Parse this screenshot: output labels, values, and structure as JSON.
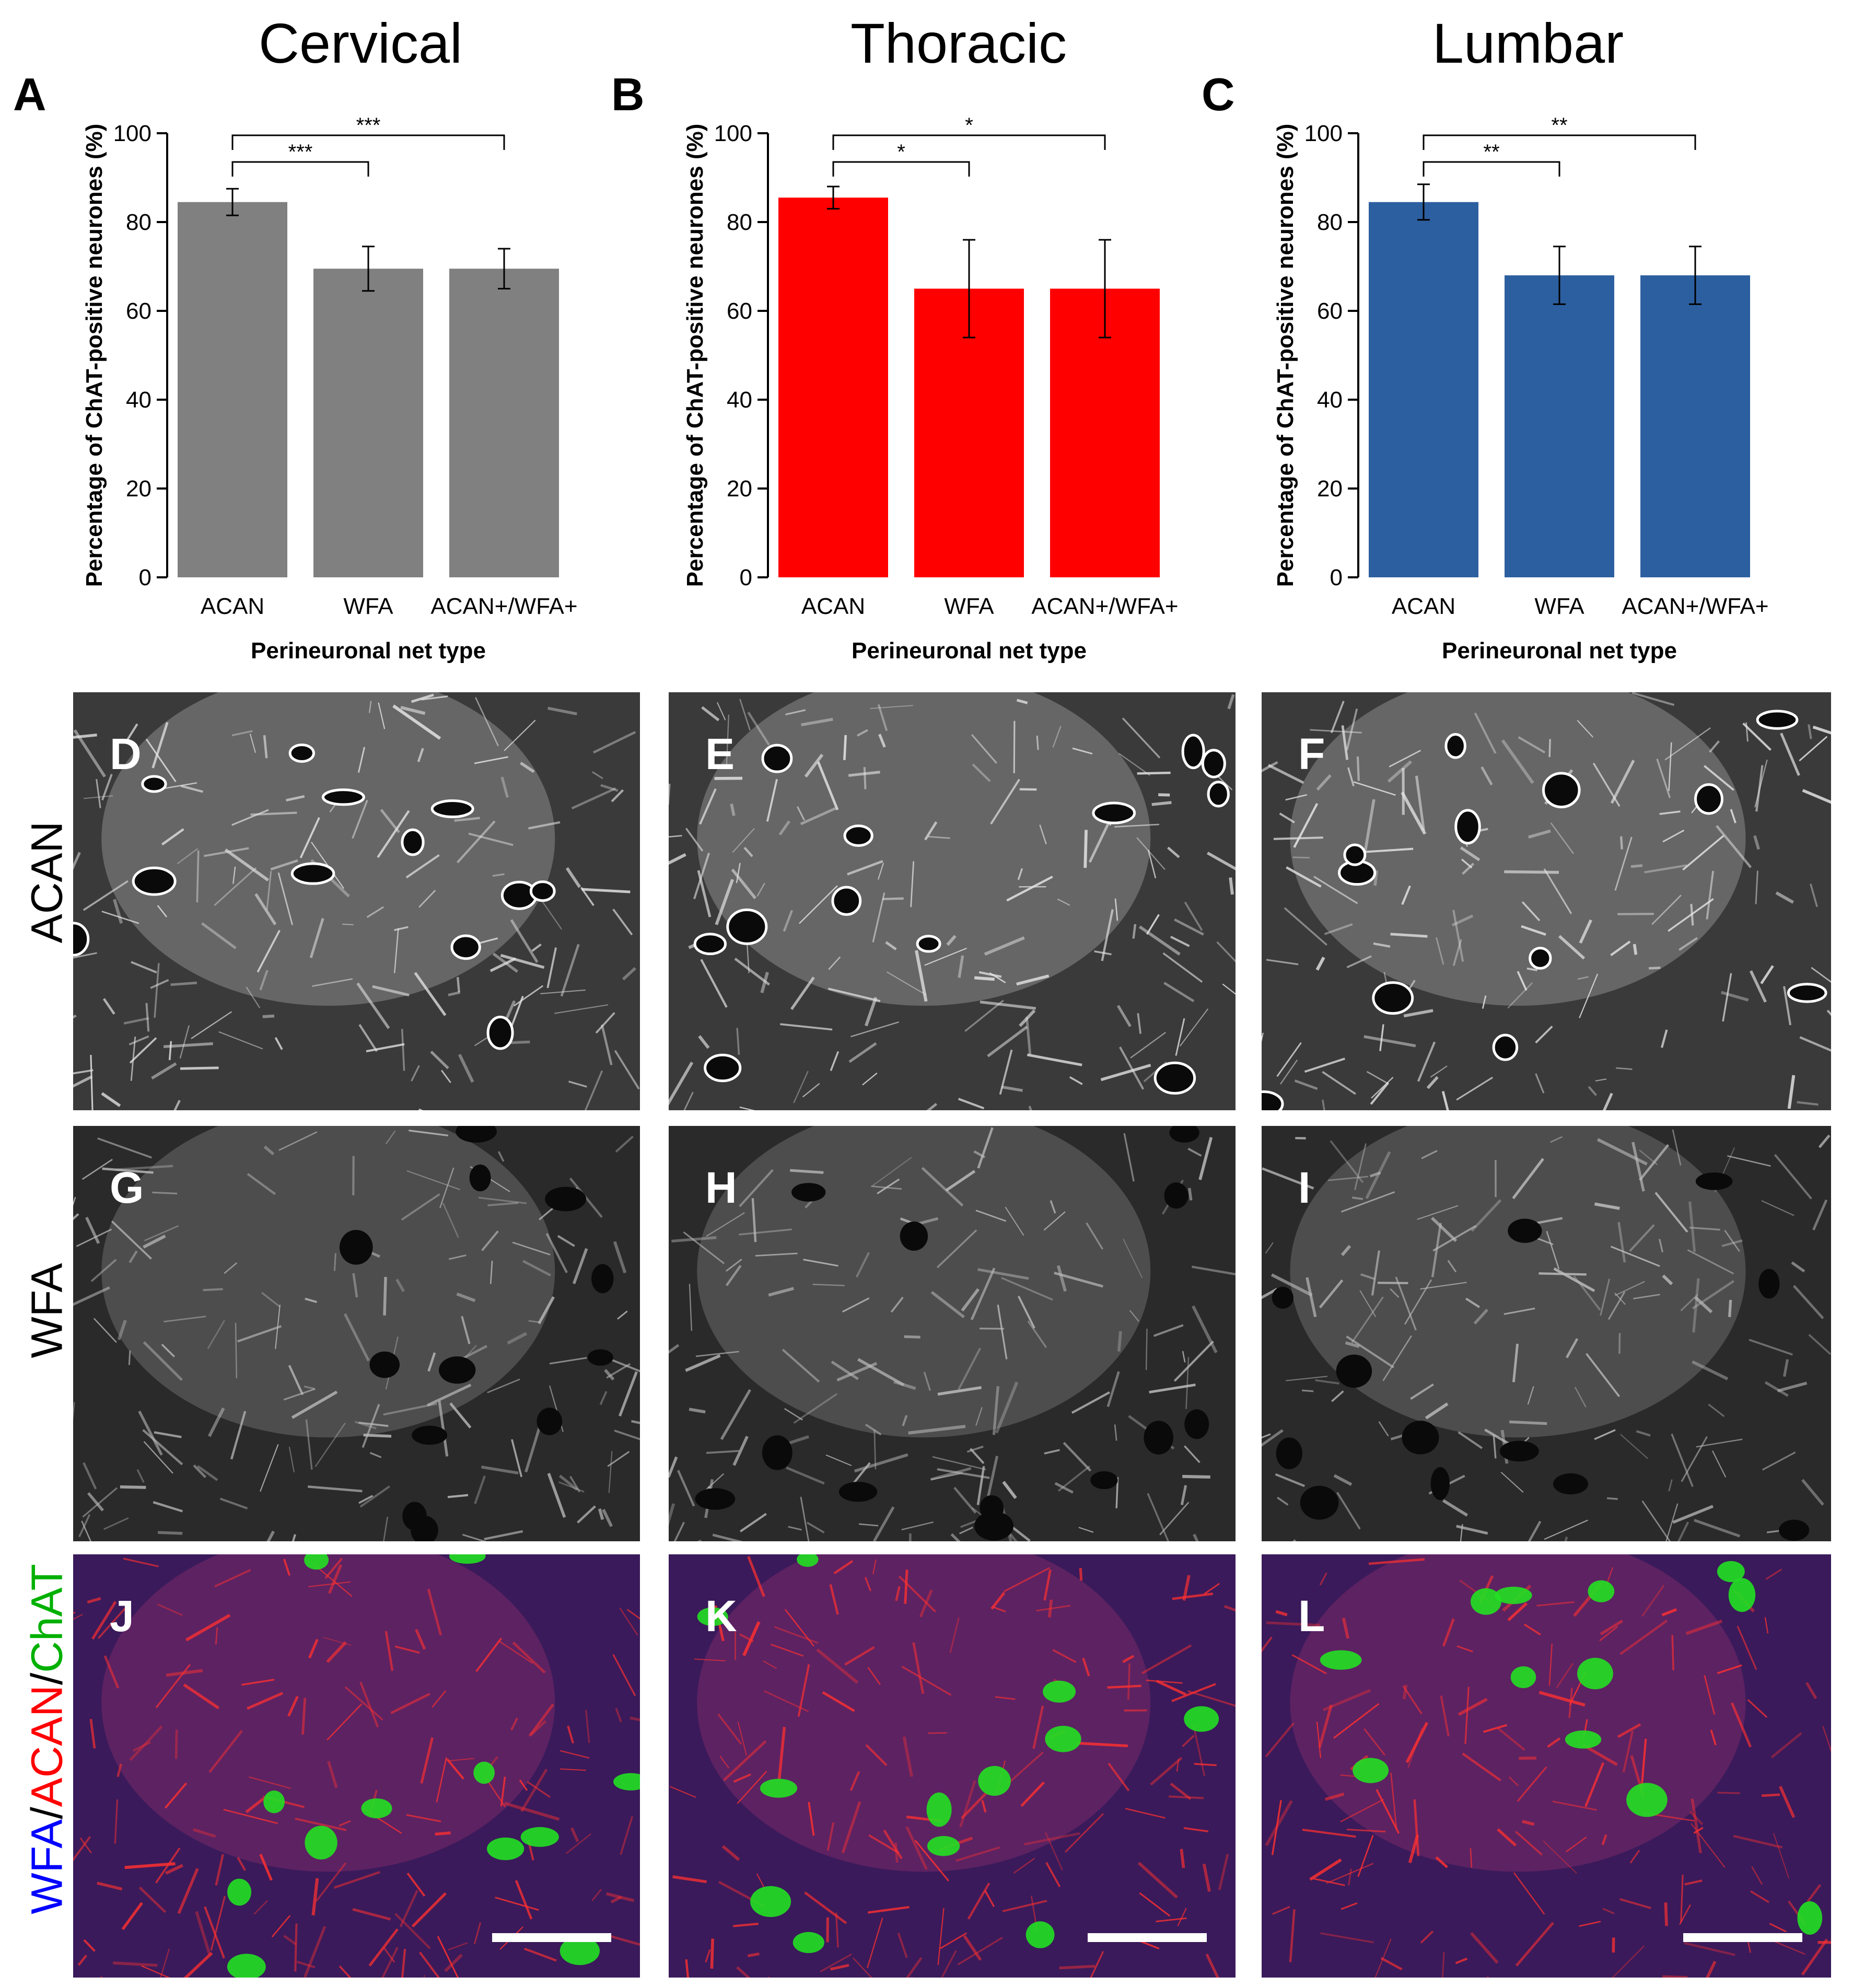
{
  "columns": [
    {
      "title": "Cervical",
      "letter": "A",
      "color": "#808080"
    },
    {
      "title": "Thoracic",
      "letter": "B",
      "color": "#ff0000"
    },
    {
      "title": "Lumbar",
      "letter": "C",
      "color": "#2c5fa0"
    }
  ],
  "chart_data": [
    {
      "type": "bar",
      "panel": "A",
      "categories": [
        "ACAN",
        "WFA",
        "ACAN+/WFA+"
      ],
      "values": [
        84.5,
        69.5,
        69.5
      ],
      "errors": [
        3,
        5,
        4.5
      ],
      "ylabel": "Percentage of ChAT-positive neurones (%)",
      "xlabel": "Perineuronal net type",
      "ylim": [
        0,
        100
      ],
      "yticks": [
        "0",
        "20",
        "40",
        "60",
        "80",
        "100"
      ],
      "significance": [
        {
          "from": "ACAN",
          "to": "WFA",
          "label": "***"
        },
        {
          "from": "ACAN",
          "to": "ACAN+/WFA+",
          "label": "***"
        }
      ],
      "bar_color": "#808080"
    },
    {
      "type": "bar",
      "panel": "B",
      "categories": [
        "ACAN",
        "WFA",
        "ACAN+/WFA+"
      ],
      "values": [
        85.5,
        65,
        65
      ],
      "errors": [
        2.5,
        11,
        11
      ],
      "ylabel": "Percentage of ChAT-positive neurones (%)",
      "xlabel": "Perineuronal net type",
      "ylim": [
        0,
        100
      ],
      "yticks": [
        "0",
        "20",
        "40",
        "60",
        "80",
        "100"
      ],
      "significance": [
        {
          "from": "ACAN",
          "to": "WFA",
          "label": "*"
        },
        {
          "from": "ACAN",
          "to": "ACAN+/WFA+",
          "label": "*"
        }
      ],
      "bar_color": "#ff0000"
    },
    {
      "type": "bar",
      "panel": "C",
      "categories": [
        "ACAN",
        "WFA",
        "ACAN+/WFA+"
      ],
      "values": [
        84.5,
        68,
        68
      ],
      "errors": [
        4,
        6.5,
        6.5
      ],
      "ylabel": "Percentage of ChAT-positive neurones (%)",
      "xlabel": "Perineuronal net type",
      "ylim": [
        0,
        100
      ],
      "yticks": [
        "0",
        "20",
        "40",
        "60",
        "80",
        "100"
      ],
      "significance": [
        {
          "from": "ACAN",
          "to": "WFA",
          "label": "**"
        },
        {
          "from": "ACAN",
          "to": "ACAN+/WFA+",
          "label": "**"
        }
      ],
      "bar_color": "#2c5fa0"
    }
  ],
  "rows": [
    {
      "label": "ACAN",
      "letters": [
        "D",
        "E",
        "F"
      ],
      "style": "acan"
    },
    {
      "label": "WFA",
      "letters": [
        "G",
        "H",
        "I"
      ],
      "style": "wfa"
    },
    {
      "label_parts": [
        {
          "text": "WFA",
          "color": "#0000ff"
        },
        {
          "text": "/",
          "color": "#000000"
        },
        {
          "text": "ACAN",
          "color": "#ff0000"
        },
        {
          "text": "/",
          "color": "#000000"
        },
        {
          "text": "ChAT",
          "color": "#00b000"
        }
      ],
      "letters": [
        "J",
        "K",
        "L"
      ],
      "style": "merge"
    }
  ]
}
